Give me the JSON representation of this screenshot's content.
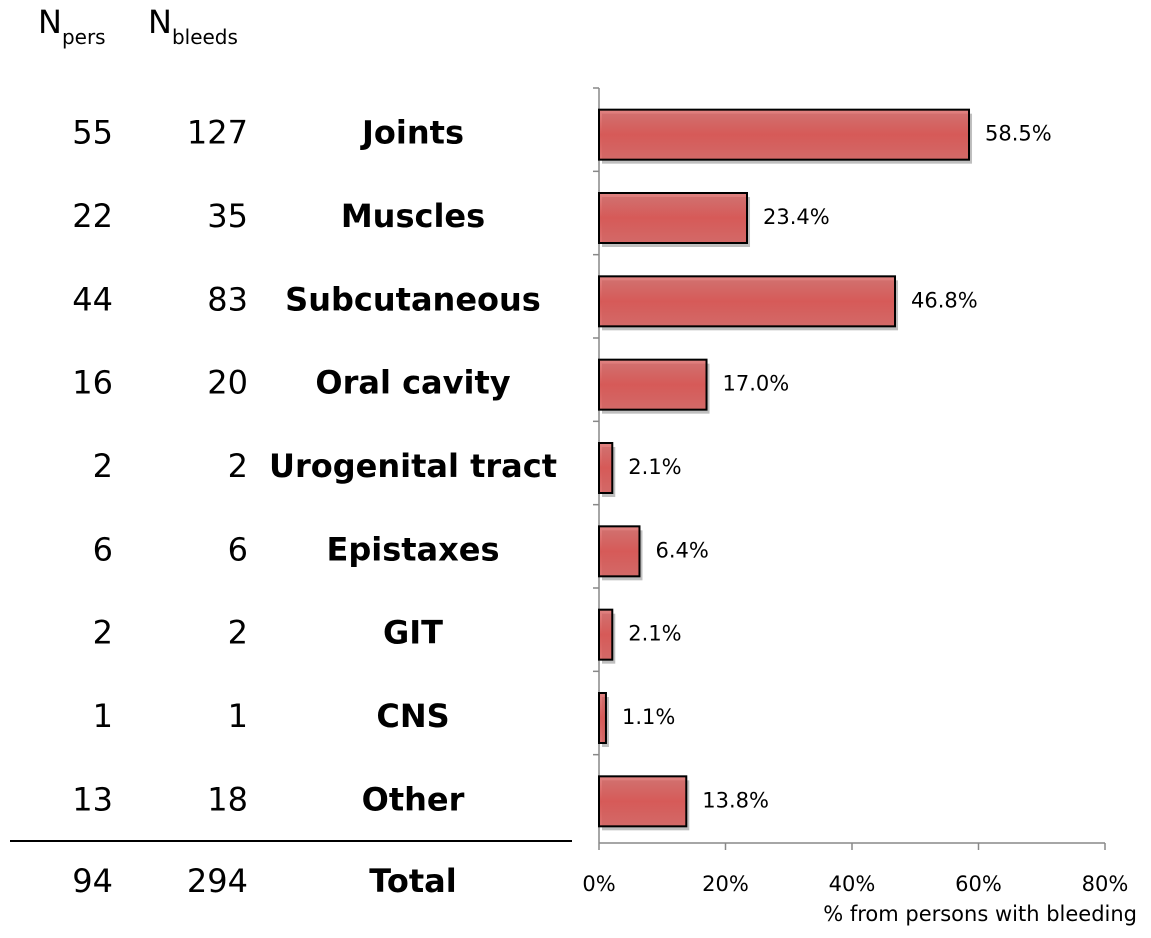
{
  "chart_data": {
    "type": "hbar",
    "categories": [
      "Joints",
      "Muscles",
      "Subcutaneous",
      "Oral cavity",
      "Urogenital tract",
      "Epistaxes",
      "GIT",
      "CNS",
      "Other"
    ],
    "values": [
      58.5,
      23.4,
      46.8,
      17.0,
      2.1,
      6.4,
      2.1,
      1.1,
      13.8
    ],
    "value_labels": [
      "58.5%",
      "23.4%",
      "46.8%",
      "17.0%",
      "2.1%",
      "6.4%",
      "2.1%",
      "1.1%",
      "13.8%"
    ],
    "color": "#d65a58",
    "xlim": [
      0,
      80
    ],
    "xticks": [
      {
        "value": 0,
        "label": "0%"
      },
      {
        "value": 20,
        "label": "20%"
      },
      {
        "value": 40,
        "label": "40%"
      },
      {
        "value": 60,
        "label": "60%"
      },
      {
        "value": 80,
        "label": "80%"
      }
    ],
    "x_label": "% from persons with bleeding"
  },
  "table": {
    "headers": [
      {
        "main": "N",
        "sub": "pers"
      },
      {
        "main": "N",
        "sub": "bleeds"
      }
    ],
    "n_pers": [
      55,
      22,
      44,
      16,
      2,
      6,
      2,
      1,
      13
    ],
    "n_bleeds": [
      127,
      35,
      83,
      20,
      2,
      6,
      2,
      1,
      18
    ],
    "total": {
      "n_pers": 94,
      "n_bleeds": 294,
      "label": "Total"
    }
  }
}
